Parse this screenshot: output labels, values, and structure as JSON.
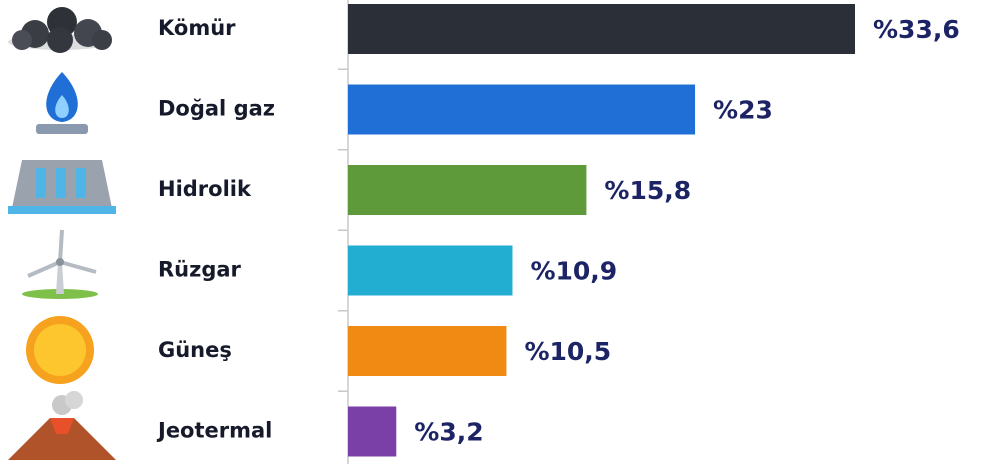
{
  "chart_data": {
    "type": "bar",
    "orientation": "horizontal",
    "categories": [
      "Kömür",
      "Doğal gaz",
      "Hidrolik",
      "Rüzgar",
      "Güneş",
      "Jeotermal"
    ],
    "values": [
      33.6,
      23,
      15.8,
      10.9,
      10.5,
      3.2
    ],
    "value_labels": [
      "%33,6",
      "%23",
      "%15,8",
      "%10,9",
      "%10,5",
      "%3,2"
    ],
    "colors": [
      "#2b2f38",
      "#1f6fd6",
      "#5e9a3a",
      "#22aed1",
      "#f08a12",
      "#7b3fa8"
    ]
  }
}
